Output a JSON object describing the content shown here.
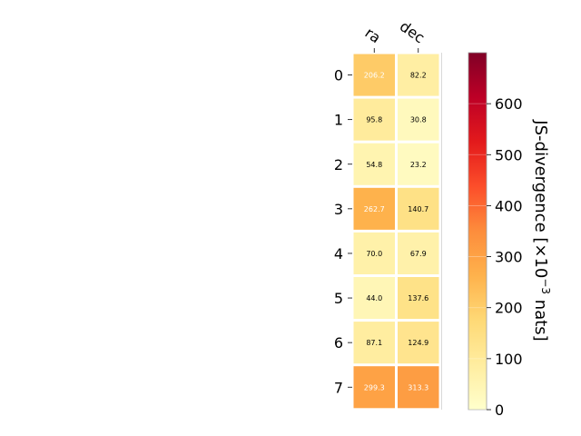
{
  "chart_data": {
    "type": "heatmap",
    "columns": [
      "ra",
      "dec"
    ],
    "rows": [
      "0",
      "1",
      "2",
      "3",
      "4",
      "5",
      "6",
      "7"
    ],
    "values": [
      [
        206.2,
        82.2
      ],
      [
        95.8,
        30.8
      ],
      [
        54.8,
        23.2
      ],
      [
        262.7,
        140.7
      ],
      [
        70.0,
        67.9
      ],
      [
        44.0,
        137.6
      ],
      [
        87.1,
        124.9
      ],
      [
        299.3,
        313.3
      ]
    ],
    "value_labels": [
      [
        "206.2",
        "82.2"
      ],
      [
        "95.8",
        "30.8"
      ],
      [
        "54.8",
        "23.2"
      ],
      [
        "262.7",
        "140.7"
      ],
      [
        "70.0",
        "67.9"
      ],
      [
        "44.0",
        "137.6"
      ],
      [
        "87.1",
        "124.9"
      ],
      [
        "299.3",
        "313.3"
      ]
    ],
    "colorbar": {
      "label": "JS-divergence [×10",
      "label_exponent": "−3",
      "label_suffix": " nats]",
      "range": [
        0,
        700
      ],
      "ticks": [
        "0",
        "100",
        "200",
        "300",
        "400",
        "500",
        "600"
      ],
      "colormap": "YlOrRd"
    }
  }
}
